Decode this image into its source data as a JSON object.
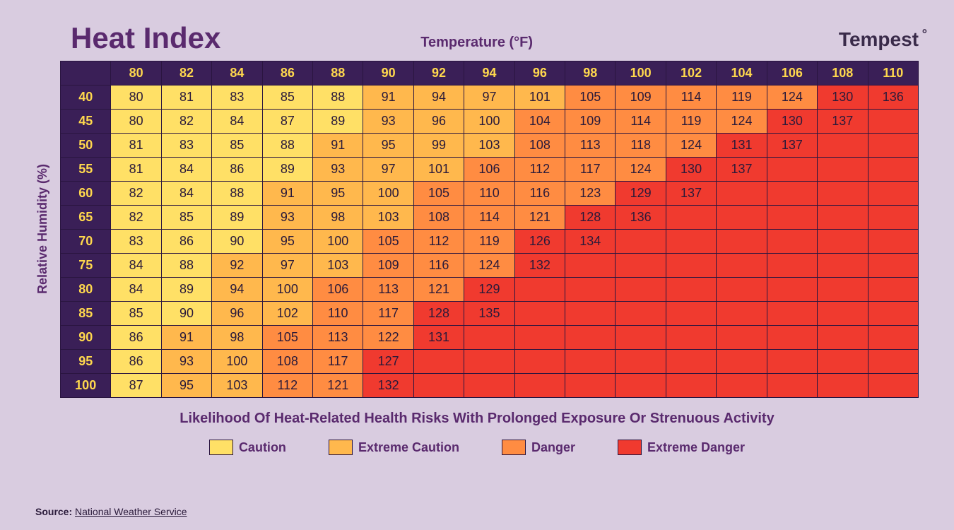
{
  "title": "Heat Index",
  "x_axis_label": "Temperature (°F)",
  "y_axis_label": "Relative Humidity (%)",
  "brand": "Tempest",
  "caption": "Likelihood Of Heat-Related Health Risks With Prolonged Exposure Or Strenuous Activity",
  "source_label": "Source:",
  "source_link": "National Weather Service",
  "colors": {
    "background": "#d9cce0",
    "header_bg": "#3a1f57",
    "header_fg": "#ffd84d",
    "title": "#5a2a6e",
    "border": "#2a1540",
    "caution": "#ffe066",
    "extreme_caution": "#ffb84d",
    "danger": "#ff8c42",
    "extreme_danger": "#f03a2f"
  },
  "legend": [
    {
      "label": "Caution",
      "color_key": "caution"
    },
    {
      "label": "Extreme Caution",
      "color_key": "extreme_caution"
    },
    {
      "label": "Danger",
      "color_key": "danger"
    },
    {
      "label": "Extreme Danger",
      "color_key": "extreme_danger"
    }
  ],
  "thresholds": {
    "caution_max": 90,
    "extreme_caution_max": 103,
    "danger_max": 124
  },
  "temps": [
    80,
    82,
    84,
    86,
    88,
    90,
    92,
    94,
    96,
    98,
    100,
    102,
    104,
    106,
    108,
    110
  ],
  "humidities": [
    40,
    45,
    50,
    55,
    60,
    65,
    70,
    75,
    80,
    85,
    90,
    95,
    100
  ],
  "grid": [
    [
      80,
      81,
      83,
      85,
      88,
      91,
      94,
      97,
      101,
      105,
      109,
      114,
      119,
      124,
      130,
      136
    ],
    [
      80,
      82,
      84,
      87,
      89,
      93,
      96,
      100,
      104,
      109,
      114,
      119,
      124,
      130,
      137,
      null
    ],
    [
      81,
      83,
      85,
      88,
      91,
      95,
      99,
      103,
      108,
      113,
      118,
      124,
      131,
      137,
      null,
      null
    ],
    [
      81,
      84,
      86,
      89,
      93,
      97,
      101,
      106,
      112,
      117,
      124,
      130,
      137,
      null,
      null,
      null
    ],
    [
      82,
      84,
      88,
      91,
      95,
      100,
      105,
      110,
      116,
      123,
      129,
      137,
      null,
      null,
      null,
      null
    ],
    [
      82,
      85,
      89,
      93,
      98,
      103,
      108,
      114,
      121,
      128,
      136,
      null,
      null,
      null,
      null,
      null
    ],
    [
      83,
      86,
      90,
      95,
      100,
      105,
      112,
      119,
      126,
      134,
      null,
      null,
      null,
      null,
      null,
      null
    ],
    [
      84,
      88,
      92,
      97,
      103,
      109,
      116,
      124,
      132,
      null,
      null,
      null,
      null,
      null,
      null,
      null
    ],
    [
      84,
      89,
      94,
      100,
      106,
      113,
      121,
      129,
      null,
      null,
      null,
      null,
      null,
      null,
      null,
      null
    ],
    [
      85,
      90,
      96,
      102,
      110,
      117,
      128,
      135,
      null,
      null,
      null,
      null,
      null,
      null,
      null,
      null
    ],
    [
      86,
      91,
      98,
      105,
      113,
      122,
      131,
      null,
      null,
      null,
      null,
      null,
      null,
      null,
      null,
      null
    ],
    [
      86,
      93,
      100,
      108,
      117,
      127,
      null,
      null,
      null,
      null,
      null,
      null,
      null,
      null,
      null,
      null
    ],
    [
      87,
      95,
      103,
      112,
      121,
      132,
      null,
      null,
      null,
      null,
      null,
      null,
      null,
      null,
      null,
      null
    ]
  ]
}
